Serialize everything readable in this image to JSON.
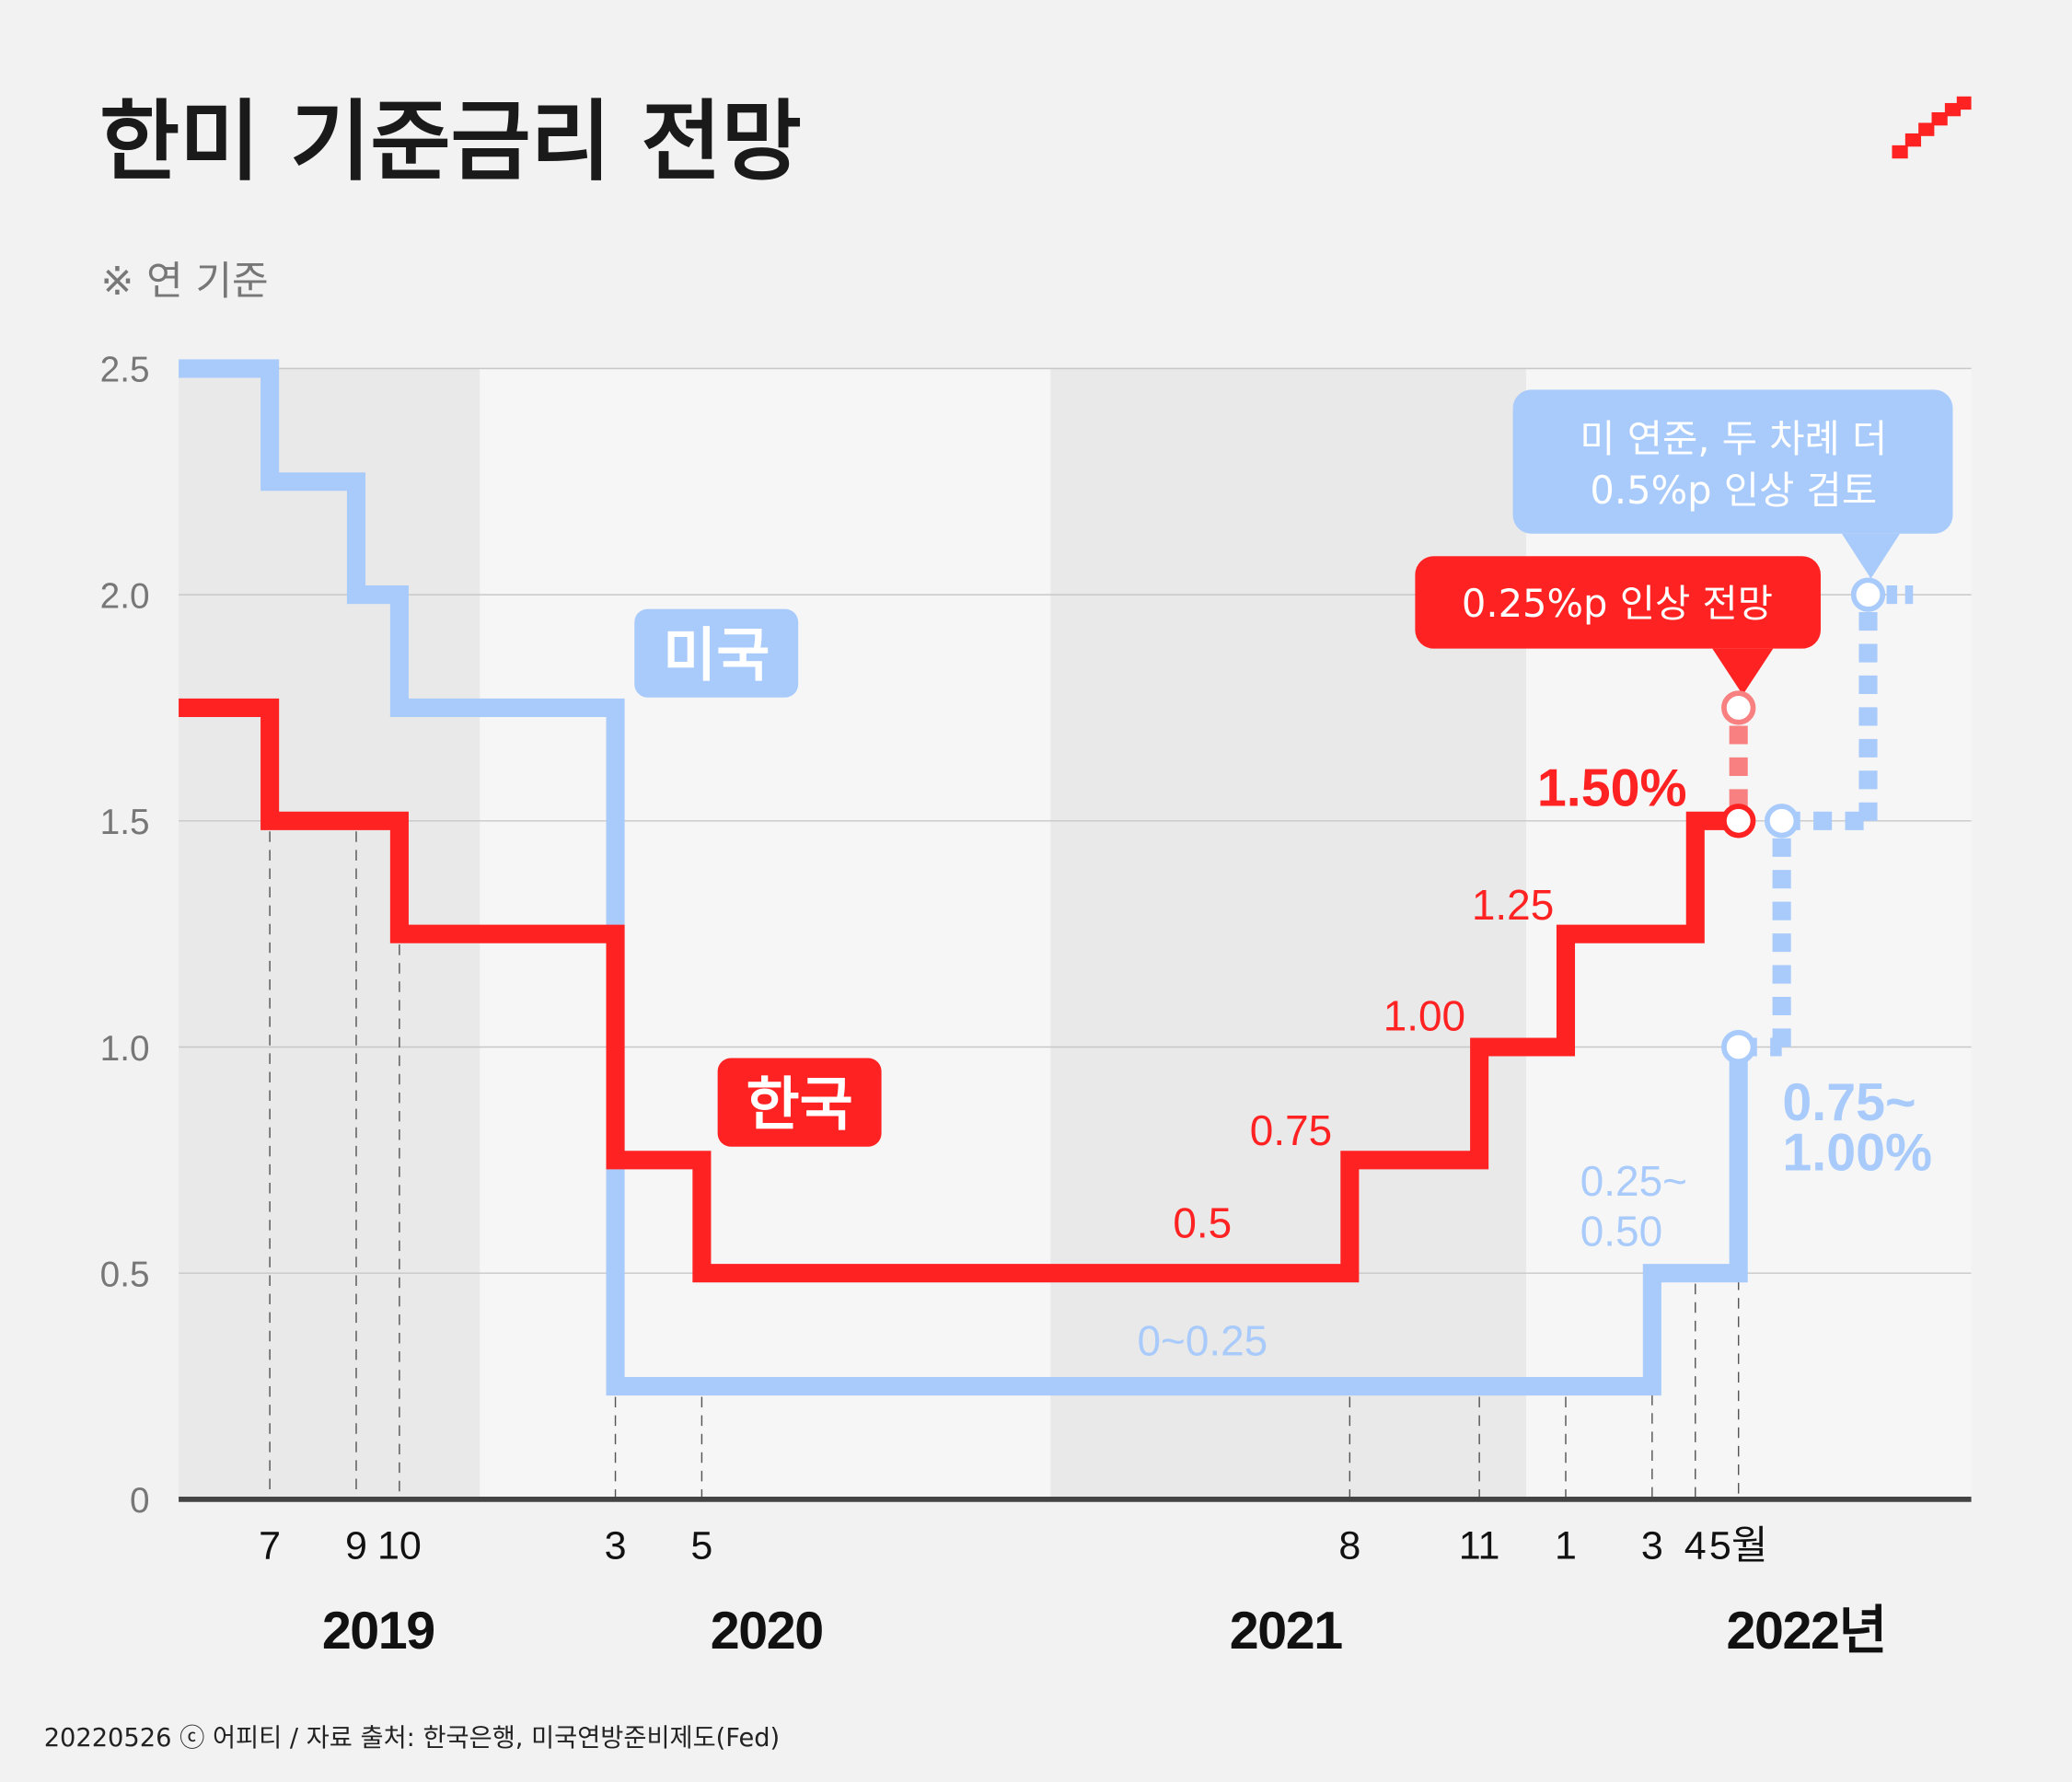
{
  "title": "한미 기준금리 전망",
  "subtitle": "※ 연 기준",
  "footer": "20220526 ⓒ 어피티 / 자료 출처: 한국은행, 미국연방준비제도(Fed)",
  "colors": {
    "korea": "#ff2222",
    "korea_projection": "#f88080",
    "us": "#a9cbfb",
    "band_dark": "#e9e9e9",
    "band_light": "#f6f6f6",
    "background": "#f2f2f2"
  },
  "logo": "staircase-logo",
  "chart_data": {
    "type": "line",
    "step": true,
    "ylim": [
      0,
      2.5
    ],
    "yticks": [
      "0",
      "0.5",
      "1.0",
      "1.5",
      "2.0",
      "2.5"
    ],
    "ytick_values": [
      0,
      0.5,
      1.0,
      1.5,
      2.0,
      2.5
    ],
    "grid": true,
    "xticks": [
      {
        "date": "2019-07",
        "label": "7"
      },
      {
        "date": "2019-09",
        "label": "9"
      },
      {
        "date": "2019-10",
        "label": "10"
      },
      {
        "date": "2020-03",
        "label": "3"
      },
      {
        "date": "2020-05",
        "label": "5"
      },
      {
        "date": "2021-08",
        "label": "8"
      },
      {
        "date": "2021-11",
        "label": "11"
      },
      {
        "date": "2022-01",
        "label": "1"
      },
      {
        "date": "2022-03",
        "label": "3"
      },
      {
        "date": "2022-04",
        "label": "4"
      },
      {
        "date": "2022-05",
        "label": "5월"
      }
    ],
    "years": [
      "2019",
      "2020",
      "2021",
      "2022년"
    ],
    "series": [
      {
        "name": "한국",
        "steps": [
          [
            "2019-04",
            1.75
          ],
          [
            "2019-07",
            1.5
          ],
          [
            "2019-10",
            1.25
          ],
          [
            "2020-03",
            0.75
          ],
          [
            "2020-05",
            0.5
          ],
          [
            "2021-08",
            0.75
          ],
          [
            "2021-11",
            1.0
          ],
          [
            "2022-01",
            1.25
          ],
          [
            "2022-04",
            1.5
          ]
        ],
        "end": "2022-05",
        "projection": [
          [
            "2022-05",
            1.5
          ],
          [
            "2022-05",
            1.75
          ]
        ],
        "labels": [
          "0.5",
          "0.75",
          "1.00",
          "1.25",
          "1.50%"
        ]
      },
      {
        "name": "미국",
        "steps": [
          [
            "2019-04",
            2.5
          ],
          [
            "2019-07",
            2.25
          ],
          [
            "2019-09",
            2.0
          ],
          [
            "2019-10",
            1.75
          ],
          [
            "2020-03",
            0.25
          ],
          [
            "2022-03",
            0.5
          ],
          [
            "2022-05",
            1.0
          ]
        ],
        "end": "2022-05",
        "projection": [
          [
            "2022-05",
            1.0
          ],
          [
            "2022-06",
            1.0
          ],
          [
            "2022-06",
            1.5
          ],
          [
            "2022-08",
            1.5
          ],
          [
            "2022-08",
            2.0
          ]
        ],
        "labels": [
          "0~0.25",
          "0.25~",
          "0.50",
          "0.75~",
          "1.00%"
        ]
      }
    ],
    "annotations": {
      "korea_callout": "0.25%p 인상 전망",
      "us_callout_line1": "미 연준, 두 차례 더",
      "us_callout_line2": "0.5%p 인상 검토"
    }
  }
}
